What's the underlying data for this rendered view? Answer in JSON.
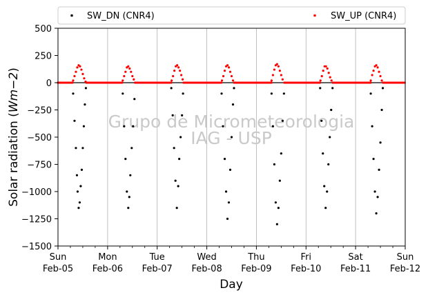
{
  "chart_data": {
    "type": "scatter",
    "xlabel": "Day",
    "ylabel": "Solar radiation (Wm−2)",
    "ylabel_parts": {
      "main": "Solar radiation (",
      "italic": "Wm",
      "sup": "−2",
      "close": ")"
    },
    "ylim": [
      -1500,
      500
    ],
    "yticks": [
      500,
      250,
      0,
      -250,
      -500,
      -750,
      -1000,
      -1250,
      -1500
    ],
    "ytick_labels": [
      "500",
      "250",
      "0",
      "−250",
      "−500",
      "−750",
      "−1000",
      "−1250",
      "−1500"
    ],
    "xlim": [
      "2023-02-05",
      "2023-02-12"
    ],
    "xtick_labels": [
      [
        "Sun",
        "Feb-05"
      ],
      [
        "Mon",
        "Feb-06"
      ],
      [
        "Tue",
        "Feb-07"
      ],
      [
        "Wed",
        "Feb-08"
      ],
      [
        "Thu",
        "Feb-09"
      ],
      [
        "Fri",
        "Feb-10"
      ],
      [
        "Sat",
        "Feb-11"
      ],
      [
        "Sun",
        "Feb-12"
      ]
    ],
    "grid": "vertical",
    "legend": "top, above plot",
    "watermark": [
      "Grupo de Micrometeorologia",
      "IAG - USP"
    ],
    "series": [
      {
        "name": "SW_DN (CNR4)",
        "color": "#000000",
        "points": [
          [
            "2023-02-05T07:20",
            -100
          ],
          [
            "2023-02-05T08:00",
            -350
          ],
          [
            "2023-02-05T08:40",
            -600
          ],
          [
            "2023-02-05T09:10",
            -850
          ],
          [
            "2023-02-05T09:30",
            -1000
          ],
          [
            "2023-02-05T10:00",
            -1150
          ],
          [
            "2023-02-05T10:30",
            -1100
          ],
          [
            "2023-02-05T11:00",
            -950
          ],
          [
            "2023-02-05T11:30",
            -800
          ],
          [
            "2023-02-05T12:00",
            -600
          ],
          [
            "2023-02-05T12:30",
            -400
          ],
          [
            "2023-02-05T13:00",
            -200
          ],
          [
            "2023-02-05T13:30",
            -50
          ],
          [
            "2023-02-06T07:20",
            -100
          ],
          [
            "2023-02-06T08:00",
            -400
          ],
          [
            "2023-02-06T08:40",
            -700
          ],
          [
            "2023-02-06T09:20",
            -1000
          ],
          [
            "2023-02-06T10:00",
            -1150
          ],
          [
            "2023-02-06T10:30",
            -1050
          ],
          [
            "2023-02-06T11:00",
            -850
          ],
          [
            "2023-02-06T11:40",
            -600
          ],
          [
            "2023-02-06T12:20",
            -400
          ],
          [
            "2023-02-06T13:00",
            -150
          ],
          [
            "2023-02-07T06:50",
            -50
          ],
          [
            "2023-02-07T07:30",
            -300
          ],
          [
            "2023-02-07T08:10",
            -600
          ],
          [
            "2023-02-07T08:50",
            -900
          ],
          [
            "2023-02-07T09:30",
            -1150
          ],
          [
            "2023-02-07T10:10",
            -950
          ],
          [
            "2023-02-07T10:40",
            -700
          ],
          [
            "2023-02-07T11:20",
            -500
          ],
          [
            "2023-02-07T12:00",
            -300
          ],
          [
            "2023-02-07T12:30",
            -100
          ],
          [
            "2023-02-08T07:10",
            -100
          ],
          [
            "2023-02-08T07:50",
            -400
          ],
          [
            "2023-02-08T08:40",
            -700
          ],
          [
            "2023-02-08T09:20",
            -1000
          ],
          [
            "2023-02-08T10:00",
            -1250
          ],
          [
            "2023-02-08T10:40",
            -1100
          ],
          [
            "2023-02-08T11:20",
            -800
          ],
          [
            "2023-02-08T12:00",
            -500
          ],
          [
            "2023-02-08T12:40",
            -200
          ],
          [
            "2023-02-08T13:10",
            -50
          ],
          [
            "2023-02-09T07:20",
            -100
          ],
          [
            "2023-02-09T08:00",
            -400
          ],
          [
            "2023-02-09T08:40",
            -750
          ],
          [
            "2023-02-09T09:20",
            -1100
          ],
          [
            "2023-02-09T10:00",
            -1300
          ],
          [
            "2023-02-09T10:40",
            -1150
          ],
          [
            "2023-02-09T11:20",
            -900
          ],
          [
            "2023-02-09T12:00",
            -650
          ],
          [
            "2023-02-09T12:40",
            -350
          ],
          [
            "2023-02-09T13:20",
            -100
          ],
          [
            "2023-02-10T06:50",
            -50
          ],
          [
            "2023-02-10T07:30",
            -350
          ],
          [
            "2023-02-10T08:10",
            -650
          ],
          [
            "2023-02-10T08:50",
            -950
          ],
          [
            "2023-02-10T09:30",
            -1150
          ],
          [
            "2023-02-10T10:10",
            -1000
          ],
          [
            "2023-02-10T10:50",
            -750
          ],
          [
            "2023-02-10T11:30",
            -500
          ],
          [
            "2023-02-10T12:10",
            -250
          ],
          [
            "2023-02-10T12:50",
            -50
          ],
          [
            "2023-02-11T07:20",
            -100
          ],
          [
            "2023-02-11T08:00",
            -400
          ],
          [
            "2023-02-11T08:40",
            -700
          ],
          [
            "2023-02-11T09:20",
            -1000
          ],
          [
            "2023-02-11T10:00",
            -1200
          ],
          [
            "2023-02-11T10:40",
            -1050
          ],
          [
            "2023-02-11T11:20",
            -800
          ],
          [
            "2023-02-11T12:00",
            -550
          ],
          [
            "2023-02-11T12:40",
            -250
          ],
          [
            "2023-02-11T13:10",
            -50
          ]
        ]
      },
      {
        "name": "SW_UP (CNR4)",
        "color": "#ff0000",
        "points": [
          [
            "2023-02-05T07:20",
            20
          ],
          [
            "2023-02-05T08:00",
            60
          ],
          [
            "2023-02-05T08:40",
            100
          ],
          [
            "2023-02-05T09:20",
            140
          ],
          [
            "2023-02-05T10:00",
            160
          ],
          [
            "2023-02-05T10:40",
            150
          ],
          [
            "2023-02-05T11:20",
            120
          ],
          [
            "2023-02-05T12:00",
            80
          ],
          [
            "2023-02-05T12:40",
            40
          ],
          [
            "2023-02-05T13:20",
            10
          ],
          [
            "2023-02-06T07:20",
            20
          ],
          [
            "2023-02-06T08:00",
            60
          ],
          [
            "2023-02-06T08:40",
            100
          ],
          [
            "2023-02-06T09:20",
            140
          ],
          [
            "2023-02-06T10:00",
            150
          ],
          [
            "2023-02-06T10:40",
            130
          ],
          [
            "2023-02-06T11:20",
            100
          ],
          [
            "2023-02-06T12:00",
            60
          ],
          [
            "2023-02-06T12:40",
            30
          ],
          [
            "2023-02-07T07:00",
            20
          ],
          [
            "2023-02-07T07:40",
            60
          ],
          [
            "2023-02-07T08:20",
            110
          ],
          [
            "2023-02-07T09:00",
            150
          ],
          [
            "2023-02-07T09:40",
            160
          ],
          [
            "2023-02-07T10:20",
            140
          ],
          [
            "2023-02-07T11:00",
            110
          ],
          [
            "2023-02-07T11:40",
            70
          ],
          [
            "2023-02-07T12:20",
            30
          ],
          [
            "2023-02-08T07:20",
            20
          ],
          [
            "2023-02-08T08:00",
            60
          ],
          [
            "2023-02-08T08:40",
            110
          ],
          [
            "2023-02-08T09:20",
            150
          ],
          [
            "2023-02-08T10:00",
            160
          ],
          [
            "2023-02-08T10:40",
            140
          ],
          [
            "2023-02-08T11:20",
            100
          ],
          [
            "2023-02-08T12:00",
            60
          ],
          [
            "2023-02-08T12:40",
            20
          ],
          [
            "2023-02-09T07:20",
            20
          ],
          [
            "2023-02-09T08:00",
            70
          ],
          [
            "2023-02-09T08:40",
            120
          ],
          [
            "2023-02-09T09:20",
            160
          ],
          [
            "2023-02-09T10:00",
            170
          ],
          [
            "2023-02-09T10:40",
            150
          ],
          [
            "2023-02-09T11:20",
            110
          ],
          [
            "2023-02-09T12:00",
            70
          ],
          [
            "2023-02-09T12:40",
            30
          ],
          [
            "2023-02-10T07:00",
            20
          ],
          [
            "2023-02-10T07:40",
            60
          ],
          [
            "2023-02-10T08:20",
            110
          ],
          [
            "2023-02-10T09:00",
            150
          ],
          [
            "2023-02-10T09:40",
            150
          ],
          [
            "2023-02-10T10:20",
            130
          ],
          [
            "2023-02-10T11:00",
            90
          ],
          [
            "2023-02-10T11:40",
            50
          ],
          [
            "2023-02-10T12:20",
            20
          ],
          [
            "2023-02-11T07:20",
            20
          ],
          [
            "2023-02-11T08:00",
            70
          ],
          [
            "2023-02-11T08:40",
            110
          ],
          [
            "2023-02-11T09:20",
            150
          ],
          [
            "2023-02-11T10:00",
            160
          ],
          [
            "2023-02-11T10:40",
            140
          ],
          [
            "2023-02-11T11:20",
            100
          ],
          [
            "2023-02-11T12:00",
            60
          ],
          [
            "2023-02-11T12:40",
            20
          ]
        ]
      }
    ]
  }
}
